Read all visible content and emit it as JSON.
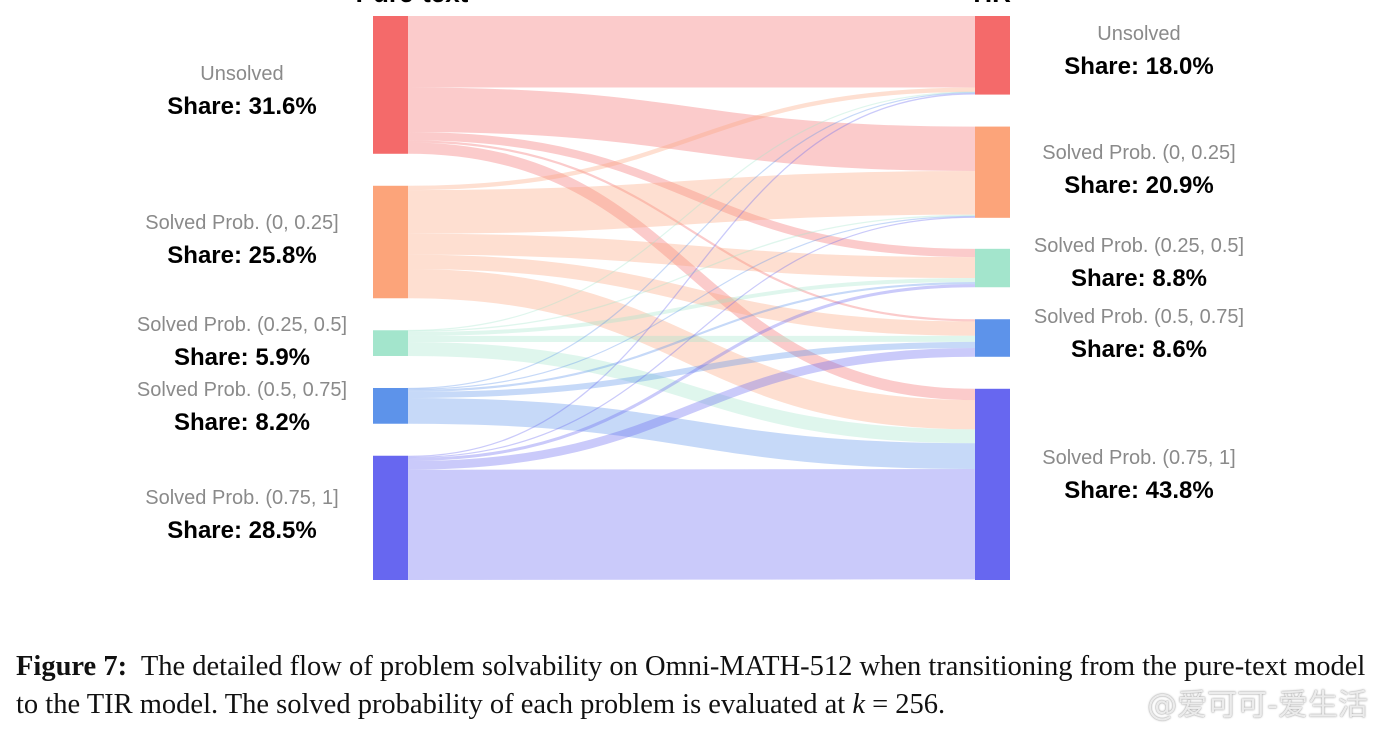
{
  "chart_data": {
    "type": "sankey",
    "columns": [
      {
        "title": "Pure-text"
      },
      {
        "title": "TIR"
      }
    ],
    "share_prefix": "Share: ",
    "left_nodes": [
      {
        "label": "Unsolved",
        "share": "31.6%",
        "value": 31.6,
        "color": "#f46a6a"
      },
      {
        "label": "Solved Prob. (0, 0.25]",
        "share": "25.8%",
        "value": 25.8,
        "color": "#fca47a"
      },
      {
        "label": "Solved Prob. (0.25, 0.5]",
        "share": "5.9%",
        "value": 5.9,
        "color": "#a3e5cc"
      },
      {
        "label": "Solved Prob. (0.5, 0.75]",
        "share": "8.2%",
        "value": 8.2,
        "color": "#5d93ea"
      },
      {
        "label": "Solved Prob. (0.75, 1]",
        "share": "28.5%",
        "value": 28.5,
        "color": "#6767f0"
      }
    ],
    "right_nodes": [
      {
        "label": "Unsolved",
        "share": "18.0%",
        "value": 18.0,
        "color": "#f46a6a"
      },
      {
        "label": "Solved Prob. (0, 0.25]",
        "share": "20.9%",
        "value": 20.9,
        "color": "#fca47a"
      },
      {
        "label": "Solved Prob. (0.25, 0.5]",
        "share": "8.8%",
        "value": 8.8,
        "color": "#a3e5cc"
      },
      {
        "label": "Solved Prob. (0.5, 0.75]",
        "share": "8.6%",
        "value": 8.6,
        "color": "#5d93ea"
      },
      {
        "label": "Solved Prob. (0.75, 1]",
        "share": "43.8%",
        "value": 43.8,
        "color": "#6767f0"
      }
    ],
    "flows": [
      {
        "source": 0,
        "target": 0,
        "value": 16.4
      },
      {
        "source": 0,
        "target": 1,
        "value": 10.2
      },
      {
        "source": 0,
        "target": 2,
        "value": 1.9
      },
      {
        "source": 0,
        "target": 3,
        "value": 0.5
      },
      {
        "source": 0,
        "target": 4,
        "value": 2.6
      },
      {
        "source": 1,
        "target": 0,
        "value": 1.0
      },
      {
        "source": 1,
        "target": 1,
        "value": 10.0
      },
      {
        "source": 1,
        "target": 2,
        "value": 4.8
      },
      {
        "source": 1,
        "target": 3,
        "value": 3.3
      },
      {
        "source": 1,
        "target": 4,
        "value": 6.7
      },
      {
        "source": 2,
        "target": 0,
        "value": 0.1
      },
      {
        "source": 2,
        "target": 1,
        "value": 0.3
      },
      {
        "source": 2,
        "target": 2,
        "value": 0.9
      },
      {
        "source": 2,
        "target": 3,
        "value": 1.4
      },
      {
        "source": 2,
        "target": 4,
        "value": 3.2
      },
      {
        "source": 3,
        "target": 0,
        "value": 0.2
      },
      {
        "source": 3,
        "target": 1,
        "value": 0.2
      },
      {
        "source": 3,
        "target": 2,
        "value": 0.5
      },
      {
        "source": 3,
        "target": 3,
        "value": 1.4
      },
      {
        "source": 3,
        "target": 4,
        "value": 5.9
      },
      {
        "source": 4,
        "target": 0,
        "value": 0.3
      },
      {
        "source": 4,
        "target": 1,
        "value": 0.2
      },
      {
        "source": 4,
        "target": 2,
        "value": 0.7
      },
      {
        "source": 4,
        "target": 3,
        "value": 2.0
      },
      {
        "source": 4,
        "target": 4,
        "value": 25.3
      }
    ]
  },
  "caption": {
    "figure_label": "Figure 7:",
    "text_before_k": "The detailed flow of problem solvability on Omni-MATH-512 when transitioning from the pure-text model to the TIR model. The solved probability of each problem is evaluated at ",
    "k_symbol": "k",
    "text_after_k": " = 256."
  },
  "watermark": "@爱可可-爱生活"
}
